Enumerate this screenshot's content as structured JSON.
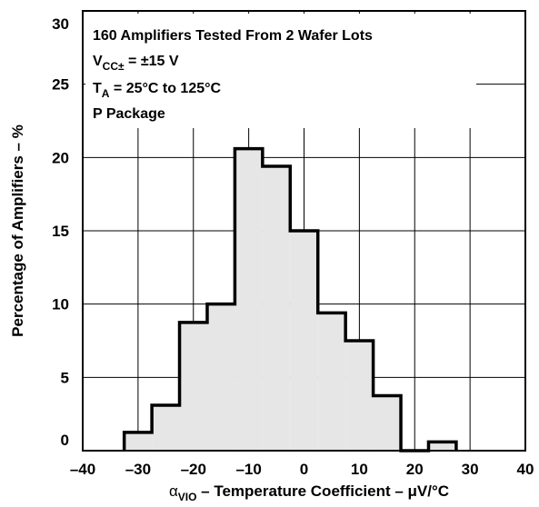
{
  "chart_data": {
    "type": "bar",
    "title": "",
    "xlabel": {
      "prefix": "α",
      "subscript": "VIO",
      "text": " – Temperature Coefficient – μV/°C"
    },
    "ylabel": "Percentage of Amplifiers – %",
    "xlim": [
      -40,
      40
    ],
    "ylim": [
      0,
      30
    ],
    "grid": true,
    "x_ticks": [
      -40,
      -30,
      -20,
      -10,
      0,
      10,
      20,
      30,
      40
    ],
    "x_tick_labels": [
      "–40",
      "–30",
      "–20",
      "–10",
      "0",
      "10",
      "20",
      "30",
      "40"
    ],
    "y_ticks": [
      0,
      5,
      10,
      15,
      20,
      25,
      30
    ],
    "y_tick_labels": [
      "0",
      "5",
      "10",
      "15",
      "20",
      "25",
      "30"
    ],
    "bin_width": 5,
    "bins": [
      {
        "start": -32.5,
        "end": -27.5,
        "value": 1.25
      },
      {
        "start": -27.5,
        "end": -22.5,
        "value": 3.1
      },
      {
        "start": -22.5,
        "end": -17.5,
        "value": 8.75
      },
      {
        "start": -17.5,
        "end": -12.5,
        "value": 10.0
      },
      {
        "start": -12.5,
        "end": -7.5,
        "value": 20.6
      },
      {
        "start": -7.5,
        "end": -2.5,
        "value": 19.4
      },
      {
        "start": -2.5,
        "end": 2.5,
        "value": 15.0
      },
      {
        "start": 2.5,
        "end": 7.5,
        "value": 9.4
      },
      {
        "start": 7.5,
        "end": 12.5,
        "value": 7.5
      },
      {
        "start": 12.5,
        "end": 17.5,
        "value": 3.75
      },
      {
        "start": 17.5,
        "end": 22.5,
        "value": 0
      },
      {
        "start": 22.5,
        "end": 27.5,
        "value": 0.6
      }
    ],
    "fill_color": "#e6e6e6",
    "stroke_color": "#000000",
    "annotations": [
      {
        "parts": [
          {
            "t": "160 Amplifiers Tested From 2 Wafer Lots"
          }
        ]
      },
      {
        "parts": [
          {
            "t": "V"
          },
          {
            "t": "CC±",
            "sub": true
          },
          {
            "t": " = ±15 V"
          }
        ]
      },
      {
        "parts": [
          {
            "t": "T"
          },
          {
            "t": "A",
            "sub": true
          },
          {
            "t": " = 25°C to 125°C"
          }
        ]
      },
      {
        "parts": [
          {
            "t": "P Package"
          }
        ]
      }
    ]
  }
}
